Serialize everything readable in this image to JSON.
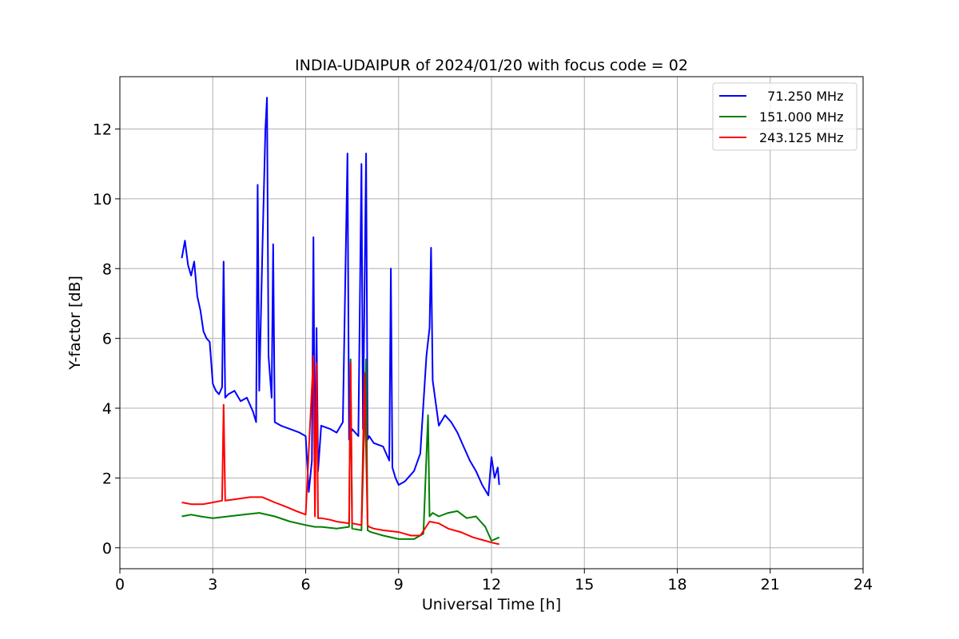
{
  "chart_data": {
    "type": "line",
    "title": "INDIA-UDAIPUR of 2024/01/20 with focus code = 02",
    "xlabel": "Universal Time [h]",
    "ylabel": "Y-factor [dB]",
    "xlim": [
      0,
      24
    ],
    "ylim": [
      -0.6,
      13.5
    ],
    "xticks": [
      0,
      3,
      6,
      9,
      12,
      15,
      18,
      21,
      24
    ],
    "yticks": [
      0,
      2,
      4,
      6,
      8,
      10,
      12
    ],
    "grid": true,
    "legend_position": "top-right",
    "series": [
      {
        "name": "  71.250 MHz",
        "color": "#0000ff",
        "x": [
          2.0,
          2.1,
          2.2,
          2.3,
          2.4,
          2.5,
          2.6,
          2.7,
          2.8,
          2.9,
          3.0,
          3.1,
          3.2,
          3.3,
          3.35,
          3.4,
          3.5,
          3.7,
          3.9,
          4.1,
          4.3,
          4.4,
          4.45,
          4.5,
          4.6,
          4.7,
          4.75,
          4.8,
          4.9,
          4.95,
          5.0,
          5.2,
          5.5,
          5.8,
          6.0,
          6.1,
          6.2,
          6.25,
          6.3,
          6.35,
          6.4,
          6.5,
          6.8,
          7.0,
          7.2,
          7.35,
          7.4,
          7.5,
          7.7,
          7.8,
          7.85,
          7.95,
          8.0,
          8.05,
          8.2,
          8.5,
          8.7,
          8.75,
          8.8,
          8.9,
          9.0,
          9.2,
          9.5,
          9.7,
          9.9,
          10.0,
          10.05,
          10.1,
          10.3,
          10.5,
          10.7,
          10.9,
          11.1,
          11.3,
          11.5,
          11.7,
          11.9,
          12.0,
          12.1,
          12.2,
          12.25
        ],
        "y": [
          8.3,
          8.8,
          8.1,
          7.8,
          8.2,
          7.2,
          6.8,
          6.2,
          6.0,
          5.9,
          4.7,
          4.5,
          4.4,
          4.6,
          8.2,
          4.3,
          4.4,
          4.5,
          4.2,
          4.3,
          3.9,
          3.6,
          10.4,
          4.5,
          8.5,
          12.0,
          12.9,
          5.5,
          4.3,
          8.7,
          3.6,
          3.5,
          3.4,
          3.3,
          3.2,
          1.6,
          2.5,
          8.9,
          1.8,
          6.3,
          2.2,
          3.5,
          3.4,
          3.3,
          3.6,
          11.3,
          3.1,
          3.4,
          3.2,
          11.0,
          3.4,
          11.3,
          3.1,
          3.2,
          3.0,
          2.9,
          2.5,
          8.0,
          2.3,
          2.0,
          1.8,
          1.9,
          2.2,
          2.7,
          5.5,
          6.3,
          8.6,
          4.8,
          3.5,
          3.8,
          3.6,
          3.3,
          2.9,
          2.5,
          2.2,
          1.8,
          1.5,
          2.6,
          2.0,
          2.3,
          1.8
        ]
      },
      {
        "name": "151.000 MHz",
        "color": "#008000",
        "x": [
          2.0,
          2.3,
          2.6,
          3.0,
          3.5,
          4.0,
          4.5,
          5.0,
          5.5,
          6.0,
          6.3,
          6.5,
          7.0,
          7.4,
          7.45,
          7.5,
          7.8,
          7.95,
          8.0,
          8.1,
          8.5,
          9.0,
          9.5,
          9.8,
          9.95,
          10.0,
          10.1,
          10.3,
          10.6,
          10.9,
          11.2,
          11.5,
          11.8,
          12.0,
          12.25
        ],
        "y": [
          0.9,
          0.95,
          0.9,
          0.85,
          0.9,
          0.95,
          1.0,
          0.9,
          0.75,
          0.65,
          0.6,
          0.6,
          0.55,
          0.6,
          5.4,
          0.55,
          0.5,
          5.4,
          0.5,
          0.45,
          0.35,
          0.25,
          0.25,
          0.4,
          3.8,
          0.9,
          1.0,
          0.9,
          1.0,
          1.05,
          0.85,
          0.9,
          0.6,
          0.2,
          0.3
        ]
      },
      {
        "name": "243.125 MHz",
        "color": "#ff0000",
        "x": [
          2.0,
          2.3,
          2.7,
          3.0,
          3.3,
          3.35,
          3.4,
          3.8,
          4.2,
          4.6,
          5.0,
          5.3,
          5.7,
          6.0,
          6.25,
          6.3,
          6.35,
          6.4,
          6.5,
          6.8,
          7.0,
          7.4,
          7.45,
          7.5,
          7.8,
          7.9,
          8.0,
          8.05,
          8.2,
          8.5,
          9.0,
          9.4,
          9.7,
          10.0,
          10.3,
          10.6,
          11.0,
          11.4,
          11.8,
          12.0,
          12.25
        ],
        "y": [
          1.3,
          1.25,
          1.25,
          1.3,
          1.35,
          4.1,
          1.35,
          1.4,
          1.45,
          1.45,
          1.3,
          1.2,
          1.05,
          0.95,
          5.5,
          0.9,
          5.3,
          0.85,
          0.85,
          0.8,
          0.75,
          0.7,
          5.3,
          0.7,
          0.65,
          5.0,
          0.65,
          0.6,
          0.55,
          0.5,
          0.45,
          0.35,
          0.35,
          0.75,
          0.7,
          0.55,
          0.45,
          0.3,
          0.2,
          0.15,
          0.1
        ]
      }
    ]
  }
}
